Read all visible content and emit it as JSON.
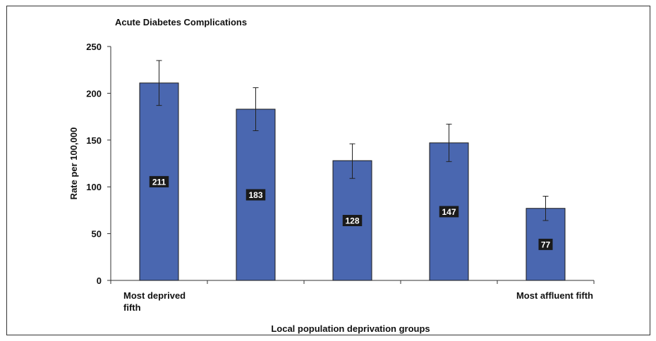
{
  "chart_data": {
    "type": "bar",
    "title": "Acute Diabetes Complications",
    "xlabel": "Local population deprivation groups",
    "ylabel": "Rate per 100,000",
    "categories": [
      "Most deprived fifth",
      "",
      "",
      "",
      "Most affluent fifth"
    ],
    "values": [
      211,
      183,
      128,
      147,
      77
    ],
    "error_low": [
      187,
      160,
      109,
      127,
      64
    ],
    "error_high": [
      235,
      206,
      146,
      167,
      90
    ],
    "data_labels": [
      "211",
      "183",
      "128",
      "147",
      "77"
    ],
    "ylim": [
      0,
      250
    ],
    "yticks": [
      "0",
      "50",
      "100",
      "150",
      "200",
      "250"
    ],
    "grid": false,
    "legend": "none",
    "colors": {
      "bar": "#4a67b0",
      "bar_edge": "#1a1a1a",
      "label_bg": "#1a1a1a",
      "axis": "#333333"
    }
  }
}
